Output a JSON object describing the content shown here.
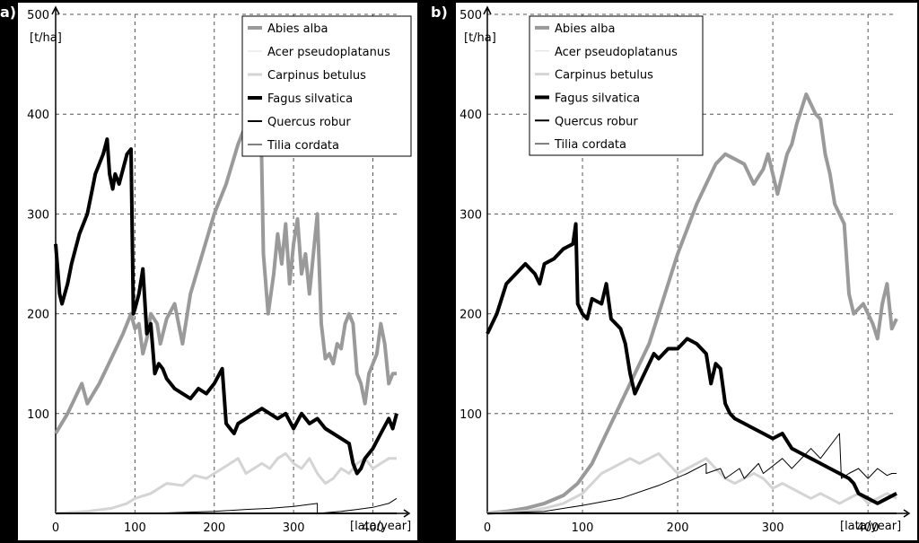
{
  "chart_data": [
    {
      "type": "line",
      "panel_label": "a)",
      "y_unit_label": "[t/ha]",
      "x_unit_label": "[lata/year]",
      "xlim": [
        0,
        430
      ],
      "ylim": [
        0,
        500
      ],
      "x_ticks": [
        "0",
        "100",
        "200",
        "300",
        "400"
      ],
      "y_ticks": [
        "100",
        "200",
        "300",
        "400",
        "500"
      ],
      "grid": true,
      "legend_position": "top-right",
      "series": [
        {
          "name": "Abies alba",
          "color": "#9a9a9a",
          "weight": 4,
          "x": [
            0,
            15,
            30,
            33,
            40,
            55,
            70,
            85,
            95,
            100,
            105,
            110,
            115,
            120,
            128,
            132,
            140,
            150,
            160,
            170,
            185,
            200,
            215,
            230,
            240,
            250,
            255,
            258,
            262,
            268,
            275,
            280,
            285,
            290,
            295,
            300,
            305,
            310,
            315,
            320,
            330,
            335,
            340,
            345,
            350,
            355,
            360,
            365,
            370,
            375,
            380,
            385,
            390,
            395,
            400,
            405,
            410,
            415,
            420,
            425,
            430
          ],
          "y": [
            80,
            100,
            125,
            130,
            110,
            130,
            155,
            180,
            200,
            185,
            190,
            160,
            175,
            200,
            190,
            170,
            195,
            210,
            170,
            220,
            260,
            300,
            330,
            370,
            390,
            410,
            420,
            430,
            260,
            200,
            240,
            280,
            250,
            290,
            230,
            270,
            295,
            240,
            260,
            220,
            300,
            190,
            155,
            160,
            150,
            170,
            165,
            190,
            200,
            190,
            140,
            130,
            110,
            140,
            150,
            160,
            190,
            170,
            130,
            140,
            140
          ]
        },
        {
          "name": "Acer pseudoplatanus",
          "color": "#dddddd",
          "weight": 1,
          "x": [
            0,
            430
          ],
          "y": [
            0,
            0
          ]
        },
        {
          "name": "Carpinus betulus",
          "color": "#d4d4d4",
          "weight": 3,
          "x": [
            0,
            40,
            70,
            90,
            100,
            120,
            140,
            160,
            175,
            190,
            200,
            210,
            220,
            230,
            240,
            250,
            260,
            270,
            280,
            290,
            300,
            310,
            320,
            330,
            340,
            350,
            360,
            370,
            380,
            390,
            400,
            410,
            420,
            430
          ],
          "y": [
            0,
            2,
            5,
            10,
            15,
            20,
            30,
            28,
            38,
            35,
            40,
            45,
            50,
            55,
            40,
            45,
            50,
            45,
            55,
            60,
            50,
            45,
            55,
            40,
            30,
            35,
            45,
            40,
            50,
            55,
            45,
            50,
            55,
            55
          ]
        },
        {
          "name": "Fagus silvatica",
          "color": "#000000",
          "weight": 4,
          "x": [
            0,
            3,
            5,
            8,
            15,
            20,
            25,
            30,
            35,
            40,
            45,
            50,
            55,
            60,
            65,
            68,
            72,
            75,
            80,
            85,
            90,
            95,
            98,
            100,
            105,
            110,
            115,
            120,
            125,
            130,
            135,
            140,
            145,
            150,
            160,
            170,
            180,
            190,
            200,
            210,
            215,
            220,
            225,
            230,
            240,
            250,
            260,
            270,
            280,
            290,
            300,
            310,
            320,
            330,
            340,
            350,
            360,
            370,
            375,
            380,
            385,
            390,
            400,
            410,
            420,
            425,
            430
          ],
          "y": [
            270,
            240,
            220,
            210,
            230,
            250,
            265,
            280,
            290,
            300,
            320,
            340,
            350,
            360,
            375,
            340,
            325,
            340,
            330,
            345,
            360,
            365,
            200,
            205,
            220,
            245,
            180,
            190,
            140,
            150,
            145,
            135,
            130,
            125,
            120,
            115,
            125,
            120,
            130,
            145,
            90,
            85,
            80,
            90,
            95,
            100,
            105,
            100,
            95,
            100,
            85,
            100,
            90,
            95,
            85,
            80,
            75,
            70,
            50,
            40,
            45,
            55,
            65,
            80,
            95,
            85,
            100
          ]
        },
        {
          "name": "Quercus robur",
          "color": "#000000",
          "weight": 2,
          "x": [
            0,
            430
          ],
          "y": [
            0,
            0
          ]
        },
        {
          "name": "Tilia cordata",
          "color": "#000000",
          "weight": 1,
          "x": [
            0,
            120,
            160,
            200,
            240,
            270,
            300,
            320,
            330,
            330,
            360,
            380,
            400,
            420,
            430
          ],
          "y": [
            0,
            0,
            1,
            2,
            4,
            5,
            7,
            9,
            10,
            0,
            2,
            4,
            6,
            10,
            15
          ]
        }
      ]
    },
    {
      "type": "line",
      "panel_label": "b)",
      "y_unit_label": "[t/ha]",
      "x_unit_label": "[lata/year]",
      "xlim": [
        0,
        430
      ],
      "ylim": [
        0,
        500
      ],
      "x_ticks": [
        "0",
        "100",
        "200",
        "300",
        "400"
      ],
      "y_ticks": [
        "100",
        "200",
        "300",
        "400",
        "500"
      ],
      "grid": true,
      "legend_position": "top-right",
      "series": [
        {
          "name": "Abies alba",
          "color": "#9a9a9a",
          "weight": 4,
          "x": [
            0,
            20,
            40,
            60,
            80,
            95,
            110,
            125,
            140,
            155,
            170,
            180,
            190,
            200,
            210,
            220,
            230,
            240,
            250,
            260,
            270,
            280,
            290,
            295,
            300,
            305,
            310,
            315,
            320,
            325,
            330,
            335,
            340,
            345,
            350,
            355,
            360,
            365,
            370,
            375,
            380,
            385,
            390,
            395,
            400,
            405,
            410,
            415,
            420,
            425,
            430
          ],
          "y": [
            0,
            2,
            5,
            10,
            18,
            30,
            50,
            80,
            110,
            140,
            170,
            200,
            230,
            260,
            285,
            310,
            330,
            350,
            360,
            355,
            350,
            330,
            345,
            360,
            340,
            320,
            340,
            360,
            370,
            390,
            405,
            420,
            410,
            400,
            395,
            360,
            340,
            310,
            300,
            290,
            220,
            200,
            205,
            210,
            200,
            190,
            175,
            210,
            230,
            185,
            195
          ]
        },
        {
          "name": "Acer pseudoplatanus",
          "color": "#dddddd",
          "weight": 1,
          "x": [
            0,
            430
          ],
          "y": [
            0,
            0
          ]
        },
        {
          "name": "Carpinus betulus",
          "color": "#d4d4d4",
          "weight": 3,
          "x": [
            0,
            40,
            60,
            80,
            100,
            110,
            120,
            130,
            140,
            150,
            160,
            170,
            180,
            190,
            200,
            210,
            220,
            230,
            240,
            250,
            260,
            270,
            280,
            290,
            300,
            310,
            320,
            330,
            340,
            350,
            360,
            370,
            380,
            390,
            400,
            410,
            420,
            430
          ],
          "y": [
            0,
            2,
            5,
            10,
            20,
            30,
            40,
            45,
            50,
            55,
            50,
            55,
            60,
            50,
            40,
            45,
            50,
            55,
            45,
            35,
            30,
            35,
            40,
            35,
            25,
            30,
            25,
            20,
            15,
            20,
            15,
            10,
            15,
            20,
            10,
            15,
            20,
            15
          ]
        },
        {
          "name": "Fagus silvatica",
          "color": "#000000",
          "weight": 4,
          "x": [
            0,
            10,
            20,
            30,
            40,
            50,
            55,
            60,
            70,
            80,
            90,
            93,
            95,
            100,
            105,
            110,
            120,
            125,
            130,
            140,
            145,
            150,
            155,
            160,
            170,
            175,
            180,
            190,
            200,
            210,
            220,
            230,
            235,
            240,
            245,
            250,
            255,
            260,
            270,
            280,
            290,
            300,
            310,
            320,
            330,
            340,
            350,
            360,
            370,
            380,
            385,
            390,
            400,
            410,
            420,
            430
          ],
          "y": [
            180,
            200,
            230,
            240,
            250,
            240,
            230,
            250,
            255,
            265,
            270,
            290,
            210,
            200,
            195,
            215,
            210,
            230,
            195,
            185,
            170,
            140,
            120,
            130,
            150,
            160,
            155,
            165,
            165,
            175,
            170,
            160,
            130,
            150,
            145,
            110,
            100,
            95,
            90,
            85,
            80,
            75,
            80,
            65,
            60,
            55,
            50,
            45,
            40,
            35,
            30,
            20,
            15,
            10,
            15,
            20
          ]
        },
        {
          "name": "Quercus robur",
          "color": "#000000",
          "weight": 2,
          "x": [
            0,
            430
          ],
          "y": [
            0,
            0
          ]
        },
        {
          "name": "Tilia cordata",
          "color": "#000000",
          "weight": 1,
          "x": [
            0,
            60,
            100,
            140,
            180,
            210,
            230,
            230,
            245,
            250,
            265,
            270,
            285,
            290,
            310,
            320,
            340,
            350,
            370,
            372,
            380,
            390,
            400,
            410,
            420,
            425,
            430
          ],
          "y": [
            0,
            2,
            8,
            15,
            28,
            40,
            50,
            40,
            45,
            35,
            45,
            35,
            50,
            40,
            55,
            45,
            65,
            55,
            80,
            35,
            40,
            45,
            35,
            45,
            38,
            40,
            40
          ]
        }
      ]
    }
  ]
}
